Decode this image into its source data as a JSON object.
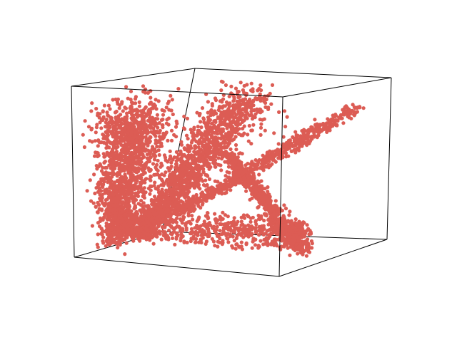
{
  "chart_data": {
    "type": "scatter",
    "projection": "3d",
    "title": "",
    "xlabel": "",
    "ylabel": "",
    "zlabel": "",
    "axes_visible": false,
    "grid": false,
    "legend": "none",
    "marker_color": "#dc5c54",
    "series": [
      {
        "name": "",
        "structures": [
          {
            "kind": "tall cluster (left)",
            "spine_start": [
              0.08,
              0.24,
              0.05
            ],
            "spine_end": [
              0.16,
              0.26,
              0.84
            ],
            "spread": 0.05
          },
          {
            "kind": "diagonal sheet (middle)",
            "spine_start": [
              0.18,
              0.3,
              0.1
            ],
            "spine_end": [
              0.58,
              0.46,
              0.92
            ],
            "spread": 0.04
          },
          {
            "kind": "long arm (to upper right)",
            "spine_start": [
              0.3,
              0.38,
              0.22
            ],
            "spine_end": [
              0.98,
              0.72,
              0.85
            ],
            "spread": 0.02
          },
          {
            "kind": "lower descending arm",
            "spine_start": [
              0.52,
              0.44,
              0.58
            ],
            "spine_end": [
              0.93,
              0.36,
              0.06
            ],
            "spread": 0.02
          },
          {
            "kind": "closed loop (near the floor)",
            "center": [
              0.5,
              0.35,
              0.1
            ],
            "radius_x": 0.42,
            "radius_y": 0.14,
            "spread": 0.02
          }
        ]
      }
    ]
  }
}
